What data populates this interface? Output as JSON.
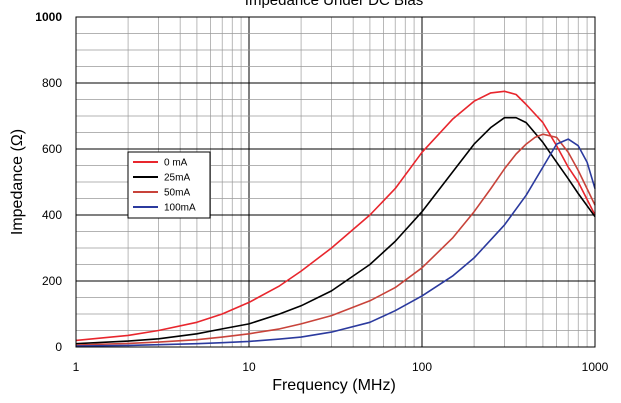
{
  "chart_data": {
    "type": "line",
    "title": "Impedance Under DC Bias",
    "xlabel": "Frequency (MHz)",
    "ylabel": "Impedance (Ω)",
    "x_scale": "log",
    "xlim": [
      1,
      1000
    ],
    "ylim": [
      0,
      1000
    ],
    "x_ticks": [
      "1",
      "10",
      "100",
      "1000"
    ],
    "y_ticks": [
      "0",
      "200",
      "400",
      "600",
      "800",
      "1000"
    ],
    "grid": true,
    "legend_position": "left",
    "series": [
      {
        "name": "0 mA",
        "color": "#e8262d",
        "x": [
          1,
          2,
          3,
          5,
          7,
          10,
          15,
          20,
          30,
          50,
          70,
          100,
          150,
          200,
          250,
          300,
          350,
          400,
          500,
          600,
          700,
          800,
          1000
        ],
        "y": [
          20,
          35,
          50,
          75,
          100,
          135,
          185,
          230,
          300,
          400,
          480,
          590,
          690,
          745,
          770,
          775,
          765,
          735,
          680,
          610,
          545,
          500,
          400
        ]
      },
      {
        "name": "25mA",
        "color": "#000000",
        "x": [
          1,
          2,
          3,
          5,
          7,
          10,
          15,
          20,
          30,
          50,
          70,
          100,
          150,
          200,
          250,
          300,
          350,
          400,
          500,
          600,
          700,
          800,
          1000
        ],
        "y": [
          10,
          18,
          25,
          40,
          55,
          70,
          100,
          125,
          170,
          250,
          320,
          410,
          530,
          615,
          665,
          695,
          695,
          680,
          620,
          560,
          510,
          465,
          395
        ]
      },
      {
        "name": "50mA",
        "color": "#c8433a",
        "x": [
          1,
          2,
          3,
          5,
          7,
          10,
          15,
          20,
          30,
          50,
          70,
          100,
          150,
          200,
          250,
          300,
          350,
          400,
          450,
          500,
          600,
          700,
          800,
          1000
        ],
        "y": [
          6,
          11,
          15,
          22,
          30,
          40,
          55,
          70,
          95,
          140,
          180,
          240,
          330,
          410,
          480,
          540,
          585,
          615,
          635,
          645,
          635,
          590,
          535,
          430
        ]
      },
      {
        "name": "100mA",
        "color": "#2b3a9e",
        "x": [
          1,
          2,
          3,
          5,
          7,
          10,
          15,
          20,
          30,
          50,
          70,
          100,
          150,
          200,
          300,
          400,
          500,
          600,
          700,
          800,
          900,
          1000
        ],
        "y": [
          3,
          5,
          7,
          10,
          13,
          17,
          24,
          30,
          45,
          75,
          110,
          155,
          215,
          270,
          370,
          460,
          545,
          615,
          630,
          610,
          560,
          480
        ]
      }
    ]
  }
}
